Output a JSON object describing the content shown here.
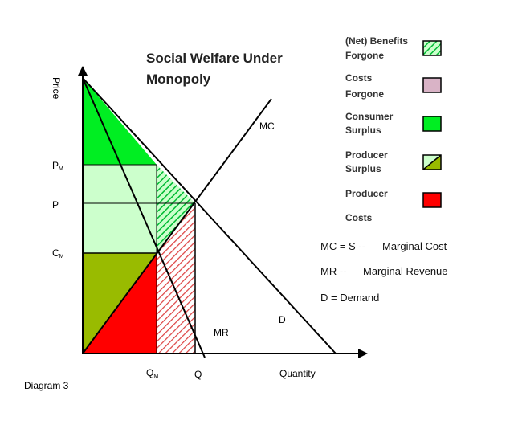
{
  "title": {
    "line1": "Social Welfare Under",
    "line2": "Monopoly"
  },
  "axes": {
    "y_label": "Price",
    "x_label": "Quantity"
  },
  "ticks": {
    "pm": {
      "main": "P",
      "sub": "M"
    },
    "p": "P",
    "cm": {
      "main": "C",
      "sub": "M"
    },
    "qm": {
      "main": "Q",
      "sub": "M"
    },
    "q": "Q"
  },
  "curves": {
    "mc": "MC",
    "mr": "MR",
    "d": "D"
  },
  "legend": [
    {
      "line1": "(Net) Benefits",
      "line2": "Forgone",
      "swatch": "hatched-green",
      "color": "#00cc33"
    },
    {
      "line1": "Costs",
      "line2": "Forgone",
      "swatch": "solid",
      "color": "#d9b3c6"
    },
    {
      "line1": "Consumer",
      "line2": "Surplus",
      "swatch": "solid",
      "color": "#00ee22"
    },
    {
      "line1": "Producer",
      "line2": "Surplus",
      "swatch": "split",
      "color": "#99bb00",
      "color2": "#ccffcc"
    },
    {
      "line1": "Producer",
      "line2": "Costs",
      "swatch": "solid",
      "color": "#ff0000"
    }
  ],
  "notes": {
    "mc": {
      "left": "MC = S  --",
      "right": "Marginal Cost"
    },
    "mr": {
      "left": "MR --",
      "right": "Marginal Revenue"
    },
    "d": "D = Demand"
  },
  "caption": "Diagram 3",
  "colors": {
    "consumer_surplus": "#00ee22",
    "producer_surplus_light": "#ccffcc",
    "producer_surplus_dark": "#99bb00",
    "producer_costs": "#ff0000",
    "benefits_forgone_hatch": "#00cc33",
    "costs_forgone_hatch": "#dd4444",
    "costs_forgone_legend": "#d9b3c6"
  }
}
